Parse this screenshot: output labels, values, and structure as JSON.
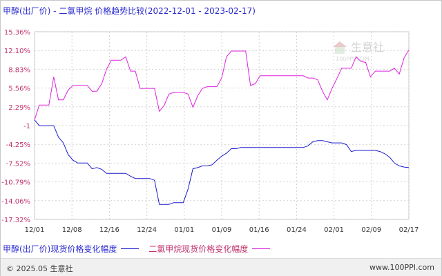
{
  "title": "甲醇(出厂价) - 二氯甲烷 价格趋势比较(2022-12-01 - 2023-02-17)",
  "footer": {
    "copyright": "© 2025.05 生意社",
    "site": "www.100PPI.com"
  },
  "colors": {
    "series1": "#1a1acc",
    "series2": "#dd22dd",
    "grid": "#d0d0d0",
    "ytick_text": "#c0306a",
    "title_text": "#2a2ad0"
  },
  "chart_data": {
    "type": "line",
    "yticks": [
      "15.36%",
      "12.10%",
      "8.83%",
      "5.56%",
      "2.29%",
      "-1",
      "-4.25%",
      "-7.52%",
      "-10.79%",
      "-14.06%",
      "-17.32%"
    ],
    "ylim": [
      -17.32,
      15.36
    ],
    "xticks": [
      "12/01",
      "12/08",
      "12/16",
      "12/24",
      "01/01",
      "01/09",
      "01/16",
      "01/24",
      "02/01",
      "02/09",
      "02/17"
    ],
    "xlim": [
      0,
      78
    ],
    "grid": true,
    "legend_position": "bottom",
    "series": [
      {
        "name": "甲醇(出厂价)现货价格变化幅度",
        "color": "#1a1acc",
        "points": [
          [
            0,
            0
          ],
          [
            1,
            -1
          ],
          [
            3,
            -1
          ],
          [
            4,
            -1
          ],
          [
            5,
            -3
          ],
          [
            6,
            -4
          ],
          [
            7,
            -6
          ],
          [
            8,
            -7
          ],
          [
            9,
            -7.5
          ],
          [
            10,
            -7.5
          ],
          [
            11,
            -7.5
          ],
          [
            12,
            -8.5
          ],
          [
            13,
            -8.3
          ],
          [
            14,
            -8.6
          ],
          [
            15,
            -9.3
          ],
          [
            16,
            -9.3
          ],
          [
            17,
            -9.3
          ],
          [
            18,
            -9.3
          ],
          [
            19,
            -9.3
          ],
          [
            20,
            -9.8
          ],
          [
            21,
            -10.2
          ],
          [
            22,
            -10.2
          ],
          [
            23,
            -10.2
          ],
          [
            24,
            -10.2
          ],
          [
            25,
            -10.5
          ],
          [
            26,
            -14.7
          ],
          [
            27,
            -14.7
          ],
          [
            28,
            -14.7
          ],
          [
            29,
            -14.4
          ],
          [
            30,
            -14.4
          ],
          [
            31,
            -14.4
          ],
          [
            32,
            -12
          ],
          [
            33,
            -8.5
          ],
          [
            34,
            -8.3
          ],
          [
            35,
            -8
          ],
          [
            36,
            -8
          ],
          [
            37,
            -7.8
          ],
          [
            38,
            -7
          ],
          [
            39,
            -6.3
          ],
          [
            40,
            -5.8
          ],
          [
            41,
            -5
          ],
          [
            42,
            -5
          ],
          [
            43,
            -4.8
          ],
          [
            44,
            -4.8
          ],
          [
            45,
            -4.8
          ],
          [
            46,
            -4.8
          ],
          [
            47,
            -4.8
          ],
          [
            48,
            -4.8
          ],
          [
            49,
            -4.8
          ],
          [
            50,
            -4.8
          ],
          [
            51,
            -4.8
          ],
          [
            52,
            -4.8
          ],
          [
            53,
            -4.8
          ],
          [
            54,
            -4.8
          ],
          [
            55,
            -4.8
          ],
          [
            56,
            -4.8
          ],
          [
            57,
            -4.5
          ],
          [
            58,
            -3.8
          ],
          [
            59,
            -3.6
          ],
          [
            60,
            -3.6
          ],
          [
            61,
            -3.8
          ],
          [
            62,
            -4
          ],
          [
            63,
            -4
          ],
          [
            64,
            -4
          ],
          [
            65,
            -4.3
          ],
          [
            66,
            -5.5
          ],
          [
            67,
            -5.3
          ],
          [
            68,
            -5.3
          ],
          [
            69,
            -5.3
          ],
          [
            70,
            -5.3
          ],
          [
            71,
            -5.3
          ],
          [
            72,
            -5.5
          ],
          [
            73,
            -5.9
          ],
          [
            74,
            -6.5
          ],
          [
            75,
            -7.5
          ],
          [
            76,
            -8
          ],
          [
            77,
            -8.2
          ],
          [
            78,
            -8.3
          ]
        ]
      },
      {
        "name": "二氯甲烷现货价格变化幅度",
        "color": "#dd22dd",
        "points": [
          [
            0,
            0
          ],
          [
            1,
            2.6
          ],
          [
            2,
            2.6
          ],
          [
            3,
            2.6
          ],
          [
            4,
            7.5
          ],
          [
            5,
            3.5
          ],
          [
            6,
            3.5
          ],
          [
            7,
            5.2
          ],
          [
            8,
            6
          ],
          [
            9,
            6
          ],
          [
            10,
            6
          ],
          [
            11,
            6
          ],
          [
            12,
            5
          ],
          [
            13,
            5
          ],
          [
            14,
            6.3
          ],
          [
            15,
            8.8
          ],
          [
            16,
            10.4
          ],
          [
            17,
            10.4
          ],
          [
            18,
            10.4
          ],
          [
            19,
            11
          ],
          [
            20,
            8.5
          ],
          [
            21,
            8.5
          ],
          [
            22,
            5.5
          ],
          [
            23,
            5.5
          ],
          [
            24,
            5.5
          ],
          [
            25,
            5.5
          ],
          [
            26,
            1.5
          ],
          [
            27,
            2.5
          ],
          [
            28,
            4.5
          ],
          [
            29,
            4.8
          ],
          [
            30,
            4.8
          ],
          [
            31,
            4.8
          ],
          [
            32,
            4.5
          ],
          [
            33,
            2.2
          ],
          [
            34,
            4.2
          ],
          [
            35,
            5.5
          ],
          [
            36,
            5.8
          ],
          [
            37,
            5.8
          ],
          [
            38,
            5.8
          ],
          [
            39,
            7.3
          ],
          [
            40,
            11
          ],
          [
            41,
            12
          ],
          [
            42,
            12
          ],
          [
            43,
            12
          ],
          [
            44,
            12
          ],
          [
            45,
            6
          ],
          [
            46,
            6.3
          ],
          [
            47,
            7.7
          ],
          [
            48,
            7.7
          ],
          [
            49,
            7.7
          ],
          [
            50,
            7.7
          ],
          [
            51,
            7.7
          ],
          [
            52,
            7.7
          ],
          [
            53,
            7.7
          ],
          [
            54,
            7.7
          ],
          [
            55,
            7.7
          ],
          [
            56,
            7.7
          ],
          [
            57,
            7.3
          ],
          [
            58,
            7.3
          ],
          [
            59,
            7
          ],
          [
            60,
            5
          ],
          [
            61,
            3.5
          ],
          [
            62,
            5.5
          ],
          [
            63,
            7.2
          ],
          [
            64,
            9
          ],
          [
            65,
            9
          ],
          [
            66,
            9
          ],
          [
            67,
            11
          ],
          [
            68,
            10.2
          ],
          [
            69,
            10
          ],
          [
            70,
            7.5
          ],
          [
            71,
            8.5
          ],
          [
            72,
            8.5
          ],
          [
            73,
            8.5
          ],
          [
            74,
            8.5
          ],
          [
            75,
            9
          ],
          [
            76,
            8
          ],
          [
            77,
            10.8
          ],
          [
            78,
            12.2
          ]
        ]
      }
    ]
  }
}
